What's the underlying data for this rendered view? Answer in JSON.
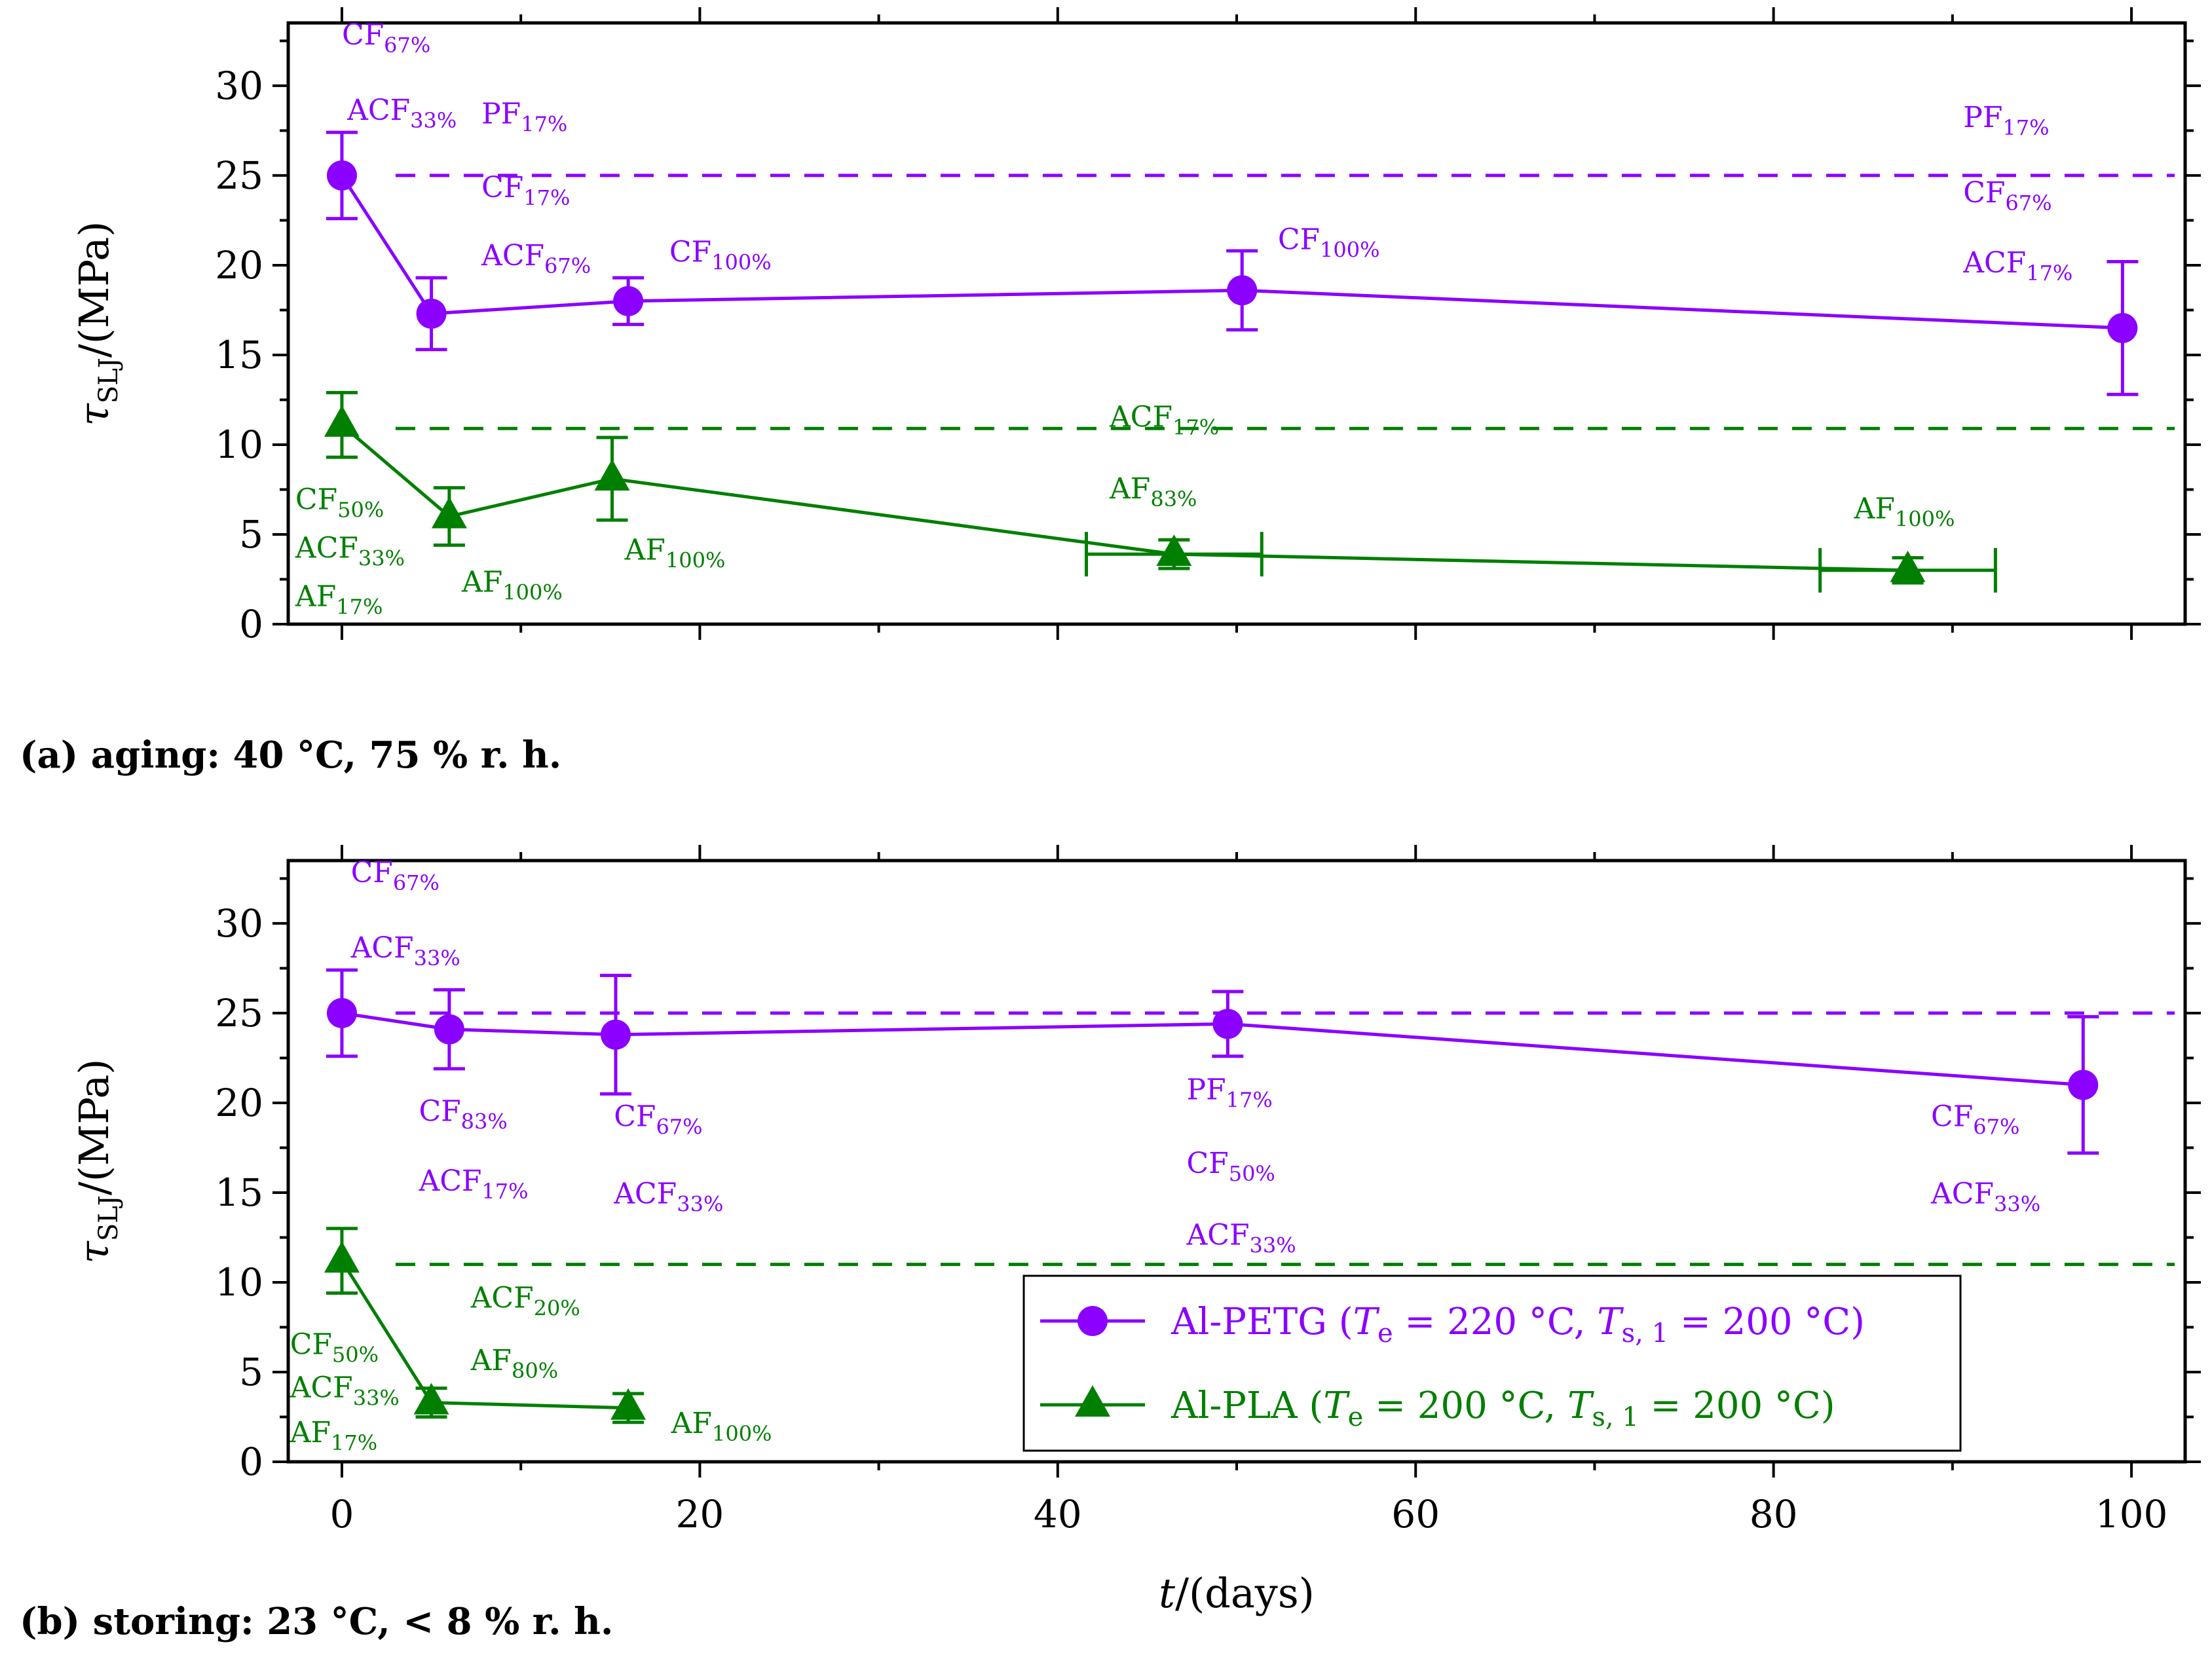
{
  "colors": {
    "petg": "#8B00FF",
    "pla": "#007F00",
    "axis": "#000000"
  },
  "chart_data": [
    {
      "type": "line",
      "id": "a",
      "caption": "(a) aging: 40 °C, 75 % r. h.",
      "xlabel": "",
      "ylabel": {
        "symbol": "τ",
        "subscript": "SLJ",
        "unit": "/(MPa)"
      },
      "xlim": [
        -3,
        103
      ],
      "ylim": [
        0,
        33.5
      ],
      "yticks": [
        "0",
        "5",
        "10",
        "15",
        "20",
        "25",
        "30"
      ],
      "xticks": [],
      "series": [
        {
          "name": "Al-PETG",
          "color": "petg",
          "marker": "circle",
          "reference": 25,
          "points": [
            {
              "x": 0,
              "y": 25,
              "err": 2.4
            },
            {
              "x": 5,
              "y": 17.3,
              "err": 2.0
            },
            {
              "x": 16,
              "y": 18,
              "err": 1.3
            },
            {
              "x": 50.3,
              "y": 18.6,
              "err": 2.2
            },
            {
              "x": 99.5,
              "y": 16.5,
              "err": 3.7
            }
          ]
        },
        {
          "name": "Al-PLA",
          "color": "pla",
          "marker": "triangle",
          "reference": 10.9,
          "points": [
            {
              "x": 0,
              "y": 11.1,
              "err": 1.8
            },
            {
              "x": 6,
              "y": 6.0,
              "err": 1.6
            },
            {
              "x": 15.1,
              "y": 8.1,
              "err": 2.3
            },
            {
              "x": 46.5,
              "y": 3.9,
              "err": 0.8,
              "xerr": 4.9
            },
            {
              "x": 87.5,
              "y": 3.0,
              "err": 0.7,
              "xerr": 4.9
            }
          ]
        }
      ],
      "annotations": [
        {
          "color": "petg",
          "x": 0,
          "y": 32.3,
          "anchor": "start",
          "base": "CF",
          "sub": "67%"
        },
        {
          "color": "petg",
          "x": 0.3,
          "y": 28.1,
          "anchor": "start",
          "base": "ACF",
          "sub": "33%"
        },
        {
          "color": "petg",
          "x": 7.8,
          "y": 27.9,
          "anchor": "start",
          "base": "PF",
          "sub": "17%"
        },
        {
          "color": "petg",
          "x": 7.8,
          "y": 23.8,
          "anchor": "start",
          "base": "CF",
          "sub": "17%"
        },
        {
          "color": "petg",
          "x": 7.8,
          "y": 20.0,
          "anchor": "start",
          "base": "ACF",
          "sub": "67%"
        },
        {
          "color": "petg",
          "x": 18.3,
          "y": 20.2,
          "anchor": "start",
          "base": "CF",
          "sub": "100%"
        },
        {
          "color": "petg",
          "x": 52.3,
          "y": 20.9,
          "anchor": "start",
          "base": "CF",
          "sub": "100%"
        },
        {
          "color": "petg",
          "x": 90.6,
          "y": 27.7,
          "anchor": "start",
          "base": "PF",
          "sub": "17%"
        },
        {
          "color": "petg",
          "x": 90.6,
          "y": 23.5,
          "anchor": "start",
          "base": "CF",
          "sub": "67%"
        },
        {
          "color": "petg",
          "x": 90.6,
          "y": 19.6,
          "anchor": "start",
          "base": "ACF",
          "sub": "17%"
        },
        {
          "color": "pla",
          "x": 42.9,
          "y": 11.0,
          "anchor": "start",
          "base": "ACF",
          "sub": "17%"
        },
        {
          "color": "pla",
          "x": 42.9,
          "y": 7.0,
          "anchor": "start",
          "base": "AF",
          "sub": "83%"
        },
        {
          "color": "pla",
          "x": 84.5,
          "y": 5.9,
          "anchor": "start",
          "base": "AF",
          "sub": "100%"
        },
        {
          "color": "pla",
          "x": -2.6,
          "y": 6.4,
          "anchor": "start",
          "base": "CF",
          "sub": "50%"
        },
        {
          "color": "pla",
          "x": -2.6,
          "y": 3.7,
          "anchor": "start",
          "base": "ACF",
          "sub": "33%"
        },
        {
          "color": "pla",
          "x": -2.6,
          "y": 1.0,
          "anchor": "start",
          "base": "AF",
          "sub": "17%"
        },
        {
          "color": "pla",
          "x": 6.7,
          "y": 1.8,
          "anchor": "start",
          "base": "AF",
          "sub": "100%"
        },
        {
          "color": "pla",
          "x": 15.8,
          "y": 3.6,
          "anchor": "start",
          "base": "AF",
          "sub": "100%"
        }
      ]
    },
    {
      "type": "line",
      "id": "b",
      "caption": "(b) storing: 23 °C, < 8 % r. h.",
      "xlabel": {
        "symbol": "t",
        "unit": "/(days)"
      },
      "ylabel": {
        "symbol": "τ",
        "subscript": "SLJ",
        "unit": "/(MPa)"
      },
      "xlim": [
        -3,
        103
      ],
      "ylim": [
        0,
        33.5
      ],
      "yticks": [
        "0",
        "5",
        "10",
        "15",
        "20",
        "25",
        "30"
      ],
      "xticks": [
        "0",
        "20",
        "40",
        "60",
        "80",
        "100"
      ],
      "series": [
        {
          "name": "Al-PETG",
          "color": "petg",
          "marker": "circle",
          "reference": 25,
          "points": [
            {
              "x": 0,
              "y": 25,
              "err": 2.4
            },
            {
              "x": 6,
              "y": 24.1,
              "err": 2.2
            },
            {
              "x": 15.3,
              "y": 23.8,
              "err": 3.3
            },
            {
              "x": 49.5,
              "y": 24.4,
              "err": 1.8
            },
            {
              "x": 97.3,
              "y": 21,
              "err": 3.8
            }
          ]
        },
        {
          "name": "Al-PLA",
          "color": "pla",
          "marker": "triangle",
          "reference": 11,
          "points": [
            {
              "x": 0,
              "y": 11.2,
              "err": 1.8
            },
            {
              "x": 5,
              "y": 3.3,
              "err": 0.8
            },
            {
              "x": 16,
              "y": 3.0,
              "err": 0.8
            }
          ]
        }
      ],
      "annotations": [
        {
          "color": "petg",
          "x": 0.5,
          "y": 32.3,
          "anchor": "start",
          "base": "CF",
          "sub": "67%"
        },
        {
          "color": "petg",
          "x": 0.5,
          "y": 28.1,
          "anchor": "start",
          "base": "ACF",
          "sub": "33%"
        },
        {
          "color": "petg",
          "x": 4.3,
          "y": 19.0,
          "anchor": "start",
          "base": "CF",
          "sub": "83%"
        },
        {
          "color": "petg",
          "x": 4.3,
          "y": 15.1,
          "anchor": "start",
          "base": "ACF",
          "sub": "17%"
        },
        {
          "color": "petg",
          "x": 15.2,
          "y": 18.7,
          "anchor": "start",
          "base": "CF",
          "sub": "67%"
        },
        {
          "color": "petg",
          "x": 15.2,
          "y": 14.4,
          "anchor": "start",
          "base": "ACF",
          "sub": "33%"
        },
        {
          "color": "petg",
          "x": 47.2,
          "y": 20.2,
          "anchor": "start",
          "base": "PF",
          "sub": "17%"
        },
        {
          "color": "petg",
          "x": 47.2,
          "y": 16.1,
          "anchor": "start",
          "base": "CF",
          "sub": "50%"
        },
        {
          "color": "petg",
          "x": 47.2,
          "y": 12.1,
          "anchor": "start",
          "base": "ACF",
          "sub": "33%"
        },
        {
          "color": "petg",
          "x": 88.8,
          "y": 18.7,
          "anchor": "start",
          "base": "CF",
          "sub": "67%"
        },
        {
          "color": "petg",
          "x": 88.8,
          "y": 14.4,
          "anchor": "start",
          "base": "ACF",
          "sub": "33%"
        },
        {
          "color": "pla",
          "x": 7.2,
          "y": 8.6,
          "anchor": "start",
          "base": "ACF",
          "sub": "20%"
        },
        {
          "color": "pla",
          "x": 7.2,
          "y": 5.1,
          "anchor": "start",
          "base": "AF",
          "sub": "80%"
        },
        {
          "color": "pla",
          "x": -2.9,
          "y": 6.0,
          "anchor": "start",
          "base": "CF",
          "sub": "50%"
        },
        {
          "color": "pla",
          "x": -2.9,
          "y": 3.6,
          "anchor": "start",
          "base": "ACF",
          "sub": "33%"
        },
        {
          "color": "pla",
          "x": -2.9,
          "y": 1.1,
          "anchor": "start",
          "base": "AF",
          "sub": "17%"
        },
        {
          "color": "pla",
          "x": 18.4,
          "y": 1.6,
          "anchor": "start",
          "base": "AF",
          "sub": "100%"
        }
      ],
      "legend": {
        "position": "bottom-right",
        "entries": [
          {
            "color": "petg",
            "marker": "circle",
            "name": "Al-PETG",
            "open": " (",
            "te_symbol": "T",
            "te_sub": "e",
            "te_value": " = 220 °C, ",
            "ts_symbol": "T",
            "ts_sub": "s, 1",
            "ts_value": " = 200 °C)"
          },
          {
            "color": "pla",
            "marker": "triangle",
            "name": "Al-PLA",
            "open": " (",
            "te_symbol": "T",
            "te_sub": "e",
            "te_value": " = 200 °C, ",
            "ts_symbol": "T",
            "ts_sub": "s, 1",
            "ts_value": " = 200 °C)"
          }
        ]
      }
    }
  ]
}
